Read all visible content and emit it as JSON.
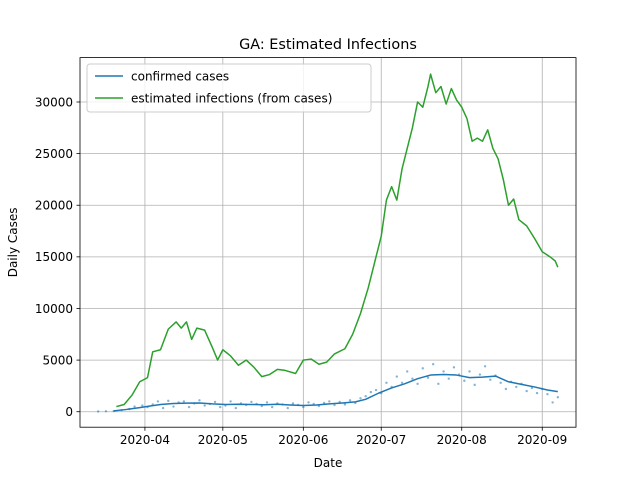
{
  "chart_data": {
    "type": "line",
    "title": "GA: Estimated Infections",
    "xlabel": "Date",
    "ylabel": "Daily Cases",
    "x_ticks": [
      "2020-04",
      "2020-05",
      "2020-06",
      "2020-07",
      "2020-08",
      "2020-09"
    ],
    "y_ticks": [
      0,
      5000,
      10000,
      15000,
      20000,
      25000,
      30000
    ],
    "ylim": [
      -1500,
      34300
    ],
    "xlim": [
      "2020-03-07",
      "2020-09-14"
    ],
    "grid": true,
    "legend_position": "top-left",
    "series": [
      {
        "name": "confirmed cases",
        "color": "#1f77b4",
        "style": "line",
        "points": [
          [
            "2020-03-20",
            80
          ],
          [
            "2020-03-25",
            220
          ],
          [
            "2020-03-30",
            400
          ],
          [
            "2020-04-03",
            550
          ],
          [
            "2020-04-07",
            700
          ],
          [
            "2020-04-12",
            800
          ],
          [
            "2020-04-17",
            830
          ],
          [
            "2020-04-22",
            850
          ],
          [
            "2020-04-27",
            760
          ],
          [
            "2020-05-02",
            700
          ],
          [
            "2020-05-07",
            720
          ],
          [
            "2020-05-12",
            700
          ],
          [
            "2020-05-17",
            680
          ],
          [
            "2020-05-22",
            720
          ],
          [
            "2020-05-27",
            650
          ],
          [
            "2020-06-01",
            600
          ],
          [
            "2020-06-06",
            650
          ],
          [
            "2020-06-11",
            760
          ],
          [
            "2020-06-16",
            850
          ],
          [
            "2020-06-21",
            950
          ],
          [
            "2020-06-25",
            1200
          ],
          [
            "2020-06-30",
            1800
          ],
          [
            "2020-07-05",
            2300
          ],
          [
            "2020-07-10",
            2700
          ],
          [
            "2020-07-15",
            3200
          ],
          [
            "2020-07-20",
            3550
          ],
          [
            "2020-07-25",
            3600
          ],
          [
            "2020-07-30",
            3550
          ],
          [
            "2020-08-04",
            3300
          ],
          [
            "2020-08-09",
            3350
          ],
          [
            "2020-08-14",
            3450
          ],
          [
            "2020-08-19",
            2900
          ],
          [
            "2020-08-24",
            2650
          ],
          [
            "2020-08-29",
            2400
          ],
          [
            "2020-09-03",
            2100
          ],
          [
            "2020-09-07",
            1950
          ]
        ]
      },
      {
        "name": "estimated infections (from cases)",
        "color": "#2ca02c",
        "style": "line",
        "points": [
          [
            "2020-03-21",
            500
          ],
          [
            "2020-03-24",
            700
          ],
          [
            "2020-03-27",
            1600
          ],
          [
            "2020-03-30",
            2900
          ],
          [
            "2020-04-02",
            3300
          ],
          [
            "2020-04-04",
            5800
          ],
          [
            "2020-04-07",
            6000
          ],
          [
            "2020-04-10",
            8000
          ],
          [
            "2020-04-13",
            8700
          ],
          [
            "2020-04-15",
            8100
          ],
          [
            "2020-04-17",
            8700
          ],
          [
            "2020-04-19",
            7000
          ],
          [
            "2020-04-21",
            8100
          ],
          [
            "2020-04-24",
            7900
          ],
          [
            "2020-04-27",
            6200
          ],
          [
            "2020-04-29",
            5000
          ],
          [
            "2020-05-01",
            6000
          ],
          [
            "2020-05-04",
            5400
          ],
          [
            "2020-05-07",
            4500
          ],
          [
            "2020-05-10",
            5000
          ],
          [
            "2020-05-13",
            4300
          ],
          [
            "2020-05-16",
            3400
          ],
          [
            "2020-05-19",
            3600
          ],
          [
            "2020-05-22",
            4100
          ],
          [
            "2020-05-25",
            4000
          ],
          [
            "2020-05-29",
            3700
          ],
          [
            "2020-06-01",
            5000
          ],
          [
            "2020-06-04",
            5100
          ],
          [
            "2020-06-07",
            4600
          ],
          [
            "2020-06-10",
            4800
          ],
          [
            "2020-06-13",
            5600
          ],
          [
            "2020-06-17",
            6100
          ],
          [
            "2020-06-20",
            7500
          ],
          [
            "2020-06-23",
            9500
          ],
          [
            "2020-06-26",
            12000
          ],
          [
            "2020-06-29",
            15000
          ],
          [
            "2020-07-01",
            17000
          ],
          [
            "2020-07-03",
            20500
          ],
          [
            "2020-07-05",
            21800
          ],
          [
            "2020-07-07",
            20500
          ],
          [
            "2020-07-09",
            23500
          ],
          [
            "2020-07-11",
            25500
          ],
          [
            "2020-07-13",
            27500
          ],
          [
            "2020-07-15",
            30000
          ],
          [
            "2020-07-17",
            29500
          ],
          [
            "2020-07-19",
            31500
          ],
          [
            "2020-07-20",
            32700
          ],
          [
            "2020-07-22",
            30900
          ],
          [
            "2020-07-24",
            31500
          ],
          [
            "2020-07-26",
            29800
          ],
          [
            "2020-07-28",
            31300
          ],
          [
            "2020-07-30",
            30200
          ],
          [
            "2020-08-01",
            29500
          ],
          [
            "2020-08-03",
            28400
          ],
          [
            "2020-08-05",
            26200
          ],
          [
            "2020-08-07",
            26500
          ],
          [
            "2020-08-09",
            26200
          ],
          [
            "2020-08-11",
            27300
          ],
          [
            "2020-08-13",
            25500
          ],
          [
            "2020-08-15",
            24500
          ],
          [
            "2020-08-17",
            22500
          ],
          [
            "2020-08-19",
            20000
          ],
          [
            "2020-08-21",
            20600
          ],
          [
            "2020-08-23",
            18600
          ],
          [
            "2020-08-26",
            18000
          ],
          [
            "2020-08-29",
            16800
          ],
          [
            "2020-09-01",
            15500
          ],
          [
            "2020-09-04",
            15000
          ],
          [
            "2020-09-06",
            14600
          ],
          [
            "2020-09-07",
            14000
          ]
        ]
      },
      {
        "name": "",
        "color": "#1f77b4",
        "style": "scatter",
        "points": [
          [
            "2020-03-14",
            20
          ],
          [
            "2020-03-17",
            40
          ],
          [
            "2020-03-20",
            60
          ],
          [
            "2020-03-23",
            150
          ],
          [
            "2020-03-26",
            250
          ],
          [
            "2020-03-28",
            500
          ],
          [
            "2020-03-31",
            600
          ],
          [
            "2020-04-02",
            450
          ],
          [
            "2020-04-04",
            700
          ],
          [
            "2020-04-06",
            1000
          ],
          [
            "2020-04-08",
            350
          ],
          [
            "2020-04-10",
            1050
          ],
          [
            "2020-04-12",
            500
          ],
          [
            "2020-04-14",
            900
          ],
          [
            "2020-04-16",
            1000
          ],
          [
            "2020-04-18",
            450
          ],
          [
            "2020-04-20",
            800
          ],
          [
            "2020-04-22",
            1100
          ],
          [
            "2020-04-24",
            600
          ],
          [
            "2020-04-26",
            750
          ],
          [
            "2020-04-28",
            950
          ],
          [
            "2020-04-30",
            450
          ],
          [
            "2020-05-02",
            600
          ],
          [
            "2020-05-04",
            1000
          ],
          [
            "2020-05-06",
            350
          ],
          [
            "2020-05-08",
            800
          ],
          [
            "2020-05-10",
            650
          ],
          [
            "2020-05-12",
            950
          ],
          [
            "2020-05-14",
            750
          ],
          [
            "2020-05-16",
            550
          ],
          [
            "2020-05-18",
            900
          ],
          [
            "2020-05-20",
            450
          ],
          [
            "2020-05-22",
            800
          ],
          [
            "2020-05-24",
            700
          ],
          [
            "2020-05-26",
            350
          ],
          [
            "2020-05-28",
            800
          ],
          [
            "2020-05-30",
            650
          ],
          [
            "2020-06-01",
            450
          ],
          [
            "2020-06-03",
            900
          ],
          [
            "2020-06-05",
            750
          ],
          [
            "2020-06-07",
            550
          ],
          [
            "2020-06-09",
            850
          ],
          [
            "2020-06-11",
            1000
          ],
          [
            "2020-06-13",
            650
          ],
          [
            "2020-06-15",
            950
          ],
          [
            "2020-06-17",
            700
          ],
          [
            "2020-06-19",
            1100
          ],
          [
            "2020-06-21",
            850
          ],
          [
            "2020-06-23",
            1300
          ],
          [
            "2020-06-25",
            1500
          ],
          [
            "2020-06-27",
            1900
          ],
          [
            "2020-06-29",
            2100
          ],
          [
            "2020-07-01",
            1800
          ],
          [
            "2020-07-03",
            2800
          ],
          [
            "2020-07-05",
            2400
          ],
          [
            "2020-07-07",
            3400
          ],
          [
            "2020-07-09",
            2800
          ],
          [
            "2020-07-11",
            3900
          ],
          [
            "2020-07-13",
            3200
          ],
          [
            "2020-07-15",
            2700
          ],
          [
            "2020-07-17",
            4200
          ],
          [
            "2020-07-19",
            3300
          ],
          [
            "2020-07-21",
            4600
          ],
          [
            "2020-07-23",
            2700
          ],
          [
            "2020-07-25",
            3900
          ],
          [
            "2020-07-27",
            3200
          ],
          [
            "2020-07-29",
            4300
          ],
          [
            "2020-07-31",
            3600
          ],
          [
            "2020-08-02",
            3000
          ],
          [
            "2020-08-04",
            3900
          ],
          [
            "2020-08-06",
            2600
          ],
          [
            "2020-08-08",
            3600
          ],
          [
            "2020-08-10",
            4400
          ],
          [
            "2020-08-12",
            3100
          ],
          [
            "2020-08-14",
            3500
          ],
          [
            "2020-08-16",
            2800
          ],
          [
            "2020-08-18",
            2200
          ],
          [
            "2020-08-20",
            2900
          ],
          [
            "2020-08-22",
            2400
          ],
          [
            "2020-08-24",
            2700
          ],
          [
            "2020-08-26",
            2000
          ],
          [
            "2020-08-28",
            2300
          ],
          [
            "2020-08-30",
            1800
          ],
          [
            "2020-09-01",
            2200
          ],
          [
            "2020-09-03",
            1700
          ],
          [
            "2020-09-05",
            900
          ],
          [
            "2020-09-07",
            1400
          ]
        ]
      }
    ]
  }
}
